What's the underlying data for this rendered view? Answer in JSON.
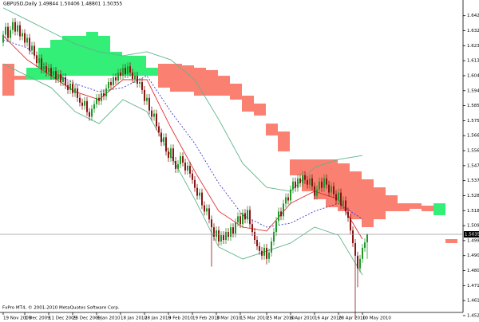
{
  "chart_data": {
    "type": "candlestick",
    "title": "GBPUSD,Daily 1.49844 1.50406 1.48801 1.50355",
    "footer": "FxPro MT4, © 2001-2010 MetaQuotes Software Corp.",
    "up_color": "#1f9a2a",
    "down_color": "#8b1414",
    "open": [
      1.625,
      1.63,
      1.635,
      1.628,
      1.633,
      1.638,
      1.632,
      1.636,
      1.629,
      1.631,
      1.625,
      1.628,
      1.62,
      1.623,
      1.617,
      1.612,
      1.615,
      1.608,
      1.61,
      1.606,
      1.609,
      1.604,
      1.607,
      1.602,
      1.605,
      1.6,
      1.603,
      1.598,
      1.595,
      1.599,
      1.593,
      1.596,
      1.59,
      1.587,
      1.585,
      1.588,
      1.581,
      1.578,
      1.583,
      1.586,
      1.59,
      1.588,
      1.593,
      1.591,
      1.596,
      1.6,
      1.598,
      1.603,
      1.601,
      1.606,
      1.604,
      1.609,
      1.605,
      1.61,
      1.606,
      1.602,
      1.604,
      1.599,
      1.6,
      1.595,
      1.588,
      1.59,
      1.582,
      1.578,
      1.58,
      1.572,
      1.568,
      1.562,
      1.565,
      1.556,
      1.552,
      1.558,
      1.55,
      1.545,
      1.548,
      1.553,
      1.549,
      1.544,
      1.547,
      1.542,
      1.538,
      1.533,
      1.528,
      1.53,
      1.522,
      1.518,
      1.52,
      1.513,
      1.508,
      1.502,
      1.506,
      1.499,
      1.503,
      1.5,
      1.505,
      1.502,
      1.508,
      1.504,
      1.511,
      1.515,
      1.51,
      1.517,
      1.513,
      1.519,
      1.51,
      1.505,
      1.5,
      1.496,
      1.493,
      1.49,
      1.495,
      1.488,
      1.492,
      1.499,
      1.505,
      1.512,
      1.518,
      1.515,
      1.523,
      1.527,
      1.525,
      1.532,
      1.537,
      1.533,
      1.539,
      1.536,
      1.541,
      1.538,
      1.535,
      1.539,
      1.534,
      1.528,
      1.532,
      1.537,
      1.533,
      1.539,
      1.535,
      1.53,
      1.534,
      1.529,
      1.525,
      1.53,
      1.522,
      1.525,
      1.518,
      1.514,
      1.506,
      1.498,
      1.49,
      1.482,
      1.488,
      1.495,
      1.49844
    ],
    "high": [
      1.6325,
      1.6375,
      1.6375,
      1.6355,
      1.6405,
      1.6405,
      1.6385,
      1.6385,
      1.6335,
      1.6335,
      1.6305,
      1.6305,
      1.6255,
      1.6255,
      1.6195,
      1.6175,
      1.6175,
      1.6125,
      1.6125,
      1.6115,
      1.6115,
      1.6095,
      1.6095,
      1.6075,
      1.6075,
      1.6055,
      1.6055,
      1.6005,
      1.6015,
      1.6015,
      1.5985,
      1.5985,
      1.5925,
      1.5895,
      1.5905,
      1.5905,
      1.5835,
      1.5855,
      1.5885,
      1.5925,
      1.5925,
      1.5955,
      1.5955,
      1.5985,
      1.6025,
      1.6025,
      1.6055,
      1.6055,
      1.6085,
      1.6085,
      1.6115,
      1.6115,
      1.6125,
      1.6125,
      1.6085,
      1.6065,
      1.6065,
      1.6025,
      1.6025,
      1.5975,
      1.5925,
      1.5925,
      1.5845,
      1.5825,
      1.5825,
      1.5745,
      1.5705,
      1.5675,
      1.5675,
      1.5585,
      1.5605,
      1.5605,
      1.5525,
      1.5505,
      1.5555,
      1.5555,
      1.5515,
      1.5495,
      1.5495,
      1.5445,
      1.5405,
      1.5355,
      1.5325,
      1.5325,
      1.5245,
      1.5225,
      1.5225,
      1.5155,
      1.5105,
      1.5085,
      1.5085,
      1.5055,
      1.5055,
      1.5075,
      1.5075,
      1.5105,
      1.5105,
      1.5135,
      1.5175,
      1.5175,
      1.5195,
      1.5195,
      1.5215,
      1.5215,
      1.5125,
      1.5075,
      1.5025,
      1.4985,
      1.4955,
      1.4975,
      1.4975,
      1.4945,
      1.5015,
      1.5075,
      1.5145,
      1.5205,
      1.5205,
      1.5255,
      1.5295,
      1.5295,
      1.5345,
      1.5395,
      1.5395,
      1.5415,
      1.5415,
      1.5435,
      1.5435,
      1.5405,
      1.5415,
      1.5415,
      1.5365,
      1.5345,
      1.5395,
      1.5395,
      1.5415,
      1.5415,
      1.5375,
      1.5365,
      1.5365,
      1.5315,
      1.5325,
      1.5325,
      1.5275,
      1.5275,
      1.5205,
      1.5165,
      1.5085,
      1.5005,
      1.4925,
      1.4905,
      1.4975,
      1.5009,
      1.50406
    ],
    "low": [
      1.6225,
      1.6275,
      1.6255,
      1.6255,
      1.6305,
      1.6295,
      1.6295,
      1.6265,
      1.6265,
      1.6225,
      1.6225,
      1.6175,
      1.6175,
      1.6145,
      1.6095,
      1.6095,
      1.6055,
      1.6055,
      1.6035,
      1.6035,
      1.6015,
      1.6015,
      1.5995,
      1.5995,
      1.5975,
      1.5975,
      1.5955,
      1.5925,
      1.5925,
      1.5905,
      1.5905,
      1.5875,
      1.5845,
      1.5825,
      1.5825,
      1.5785,
      1.5755,
      1.5755,
      1.5805,
      1.5835,
      1.5855,
      1.5855,
      1.5885,
      1.5885,
      1.5935,
      1.5955,
      1.5955,
      1.5985,
      1.5985,
      1.6015,
      1.6015,
      1.6025,
      1.6025,
      1.6035,
      1.5995,
      1.5995,
      1.5965,
      1.5965,
      1.5925,
      1.5855,
      1.5855,
      1.5795,
      1.5755,
      1.5755,
      1.5695,
      1.5655,
      1.5595,
      1.5595,
      1.5535,
      1.5495,
      1.5495,
      1.5475,
      1.5425,
      1.5425,
      1.5455,
      1.5465,
      1.5415,
      1.5415,
      1.5395,
      1.5355,
      1.5305,
      1.5255,
      1.5255,
      1.5195,
      1.5155,
      1.5155,
      1.5105,
      1.483,
      1.4995,
      1.4995,
      1.4965,
      1.4965,
      1.4975,
      1.4975,
      1.4995,
      1.4995,
      1.5015,
      1.5015,
      1.5085,
      1.5075,
      1.5075,
      1.5105,
      1.5105,
      1.5075,
      1.5025,
      1.4975,
      1.4935,
      1.4905,
      1.4875,
      1.4875,
      1.4845,
      1.4855,
      1.4895,
      1.4965,
      1.5025,
      1.5095,
      1.5125,
      1.5125,
      1.5205,
      1.5225,
      1.5225,
      1.5295,
      1.5305,
      1.5305,
      1.5335,
      1.5335,
      1.5355,
      1.5325,
      1.5325,
      1.5315,
      1.5255,
      1.5255,
      1.5295,
      1.5305,
      1.5305,
      1.5325,
      1.5275,
      1.5275,
      1.5265,
      1.5225,
      1.5225,
      1.5195,
      1.5195,
      1.5155,
      1.5115,
      1.5035,
      1.4955,
      1.45,
      1.47,
      1.4795,
      1.4855,
      1.4925,
      1.48801
    ],
    "close": [
      1.63,
      1.635,
      1.628,
      1.633,
      1.638,
      1.632,
      1.636,
      1.629,
      1.631,
      1.625,
      1.628,
      1.62,
      1.623,
      1.617,
      1.612,
      1.615,
      1.608,
      1.61,
      1.606,
      1.609,
      1.604,
      1.607,
      1.602,
      1.605,
      1.6,
      1.603,
      1.598,
      1.595,
      1.599,
      1.593,
      1.596,
      1.59,
      1.587,
      1.585,
      1.588,
      1.581,
      1.578,
      1.583,
      1.586,
      1.59,
      1.588,
      1.593,
      1.591,
      1.596,
      1.6,
      1.598,
      1.603,
      1.601,
      1.606,
      1.604,
      1.609,
      1.605,
      1.61,
      1.606,
      1.602,
      1.604,
      1.599,
      1.6,
      1.595,
      1.588,
      1.59,
      1.582,
      1.578,
      1.58,
      1.572,
      1.568,
      1.562,
      1.565,
      1.556,
      1.552,
      1.558,
      1.55,
      1.545,
      1.548,
      1.553,
      1.549,
      1.544,
      1.547,
      1.542,
      1.538,
      1.533,
      1.528,
      1.53,
      1.522,
      1.518,
      1.52,
      1.513,
      1.508,
      1.502,
      1.506,
      1.499,
      1.503,
      1.5,
      1.505,
      1.502,
      1.508,
      1.504,
      1.511,
      1.515,
      1.51,
      1.517,
      1.513,
      1.519,
      1.51,
      1.505,
      1.5,
      1.496,
      1.493,
      1.49,
      1.495,
      1.488,
      1.492,
      1.499,
      1.505,
      1.512,
      1.518,
      1.515,
      1.523,
      1.527,
      1.525,
      1.532,
      1.537,
      1.533,
      1.539,
      1.536,
      1.541,
      1.538,
      1.535,
      1.539,
      1.534,
      1.528,
      1.532,
      1.537,
      1.533,
      1.539,
      1.535,
      1.53,
      1.534,
      1.529,
      1.525,
      1.53,
      1.522,
      1.525,
      1.518,
      1.514,
      1.506,
      1.498,
      1.49,
      1.482,
      1.488,
      1.495,
      1.4984,
      1.50355
    ],
    "ylim": [
      1.448,
      1.652
    ],
    "yticks": [
      1.45205,
      1.46155,
      1.47105,
      1.48055,
      1.49005,
      1.49955,
      1.50905,
      1.51855,
      1.52805,
      1.53755,
      1.54705,
      1.55655,
      1.56605,
      1.57555,
      1.58505,
      1.59455,
      1.60405,
      1.61355,
      1.62305,
      1.63255,
      1.64205
    ],
    "current_price": 1.50355,
    "date_ticks": {
      "bars": [
        0,
        9,
        19,
        29,
        39,
        49,
        59,
        69,
        79,
        89,
        99,
        110,
        120,
        130,
        140,
        150
      ],
      "labels": [
        "19 Nov 2009",
        "1 Dec 2009",
        "11 Dec 2009",
        "23 Dec 2009",
        "6 Jan 2010",
        "18 Jan 2010",
        "28 Jan 2010",
        "9 Feb 2010",
        "19 Feb 2010",
        "3 Mar 2010",
        "15 Mar 2010",
        "25 Mar 2010",
        "6 Apr 2010",
        "16 Apr 2010",
        "28 Apr 2010",
        "10 May 2010"
      ]
    },
    "cloud": {
      "bull_color": "#33ee77",
      "bear_color": "#fa8072",
      "x": [
        0,
        5,
        10,
        15,
        20,
        25,
        30,
        35,
        40,
        45,
        50,
        55,
        60,
        65,
        70,
        75,
        80,
        85,
        90,
        95,
        100,
        105,
        110,
        115,
        120,
        125,
        130,
        135,
        140,
        145,
        150,
        155,
        160,
        165,
        170,
        175,
        180,
        185
      ],
      "senkou_a": [
        1.5914,
        1.6015,
        1.6091,
        1.6217,
        1.6268,
        1.6293,
        1.6293,
        1.6318,
        1.6293,
        1.6192,
        1.6167,
        1.6167,
        1.6091,
        1.5965,
        1.5939,
        1.5939,
        1.5914,
        1.5914,
        1.5914,
        1.5889,
        1.5813,
        1.5788,
        1.5662,
        1.5561,
        1.5409,
        1.5308,
        1.5258,
        1.5207,
        1.5182,
        1.5131,
        1.5081,
        1.5131,
        1.5182,
        1.5182,
        1.5197,
        1.5182,
        1.5232,
        1.498
      ],
      "senkou_b": [
        1.6116,
        1.604,
        1.6015,
        1.6015,
        1.6015,
        1.604,
        1.604,
        1.604,
        1.604,
        1.604,
        1.604,
        1.604,
        1.604,
        1.6116,
        1.6116,
        1.6106,
        1.6091,
        1.6076,
        1.604,
        1.599,
        1.5914,
        1.5864,
        1.5737,
        1.5687,
        1.551,
        1.551,
        1.551,
        1.551,
        1.5485,
        1.5434,
        1.5384,
        1.5333,
        1.5283,
        1.5232,
        1.5232,
        1.5217,
        1.5157,
        1.5005
      ]
    },
    "lines": [
      {
        "color": "#5fb58a",
        "dashed": false,
        "x": [
          0,
          10,
          20,
          30,
          40,
          50,
          60,
          70,
          80,
          90,
          100,
          110,
          120,
          130,
          140,
          150
        ],
        "values": [
          1.647,
          1.6394,
          1.6318,
          1.6242,
          1.6192,
          1.6167,
          1.6192,
          1.6141,
          1.6015,
          1.5763,
          1.5485,
          1.5333,
          1.5308,
          1.546,
          1.551,
          1.5535
        ]
      },
      {
        "color": "#5fb58a",
        "dashed": false,
        "x": [
          0,
          10,
          20,
          30,
          40,
          50,
          60,
          70,
          80,
          90,
          100,
          110,
          120,
          130,
          140,
          150
        ],
        "values": [
          1.6116,
          1.604,
          1.5965,
          1.5813,
          1.5737,
          1.5889,
          1.5813,
          1.5535,
          1.5258,
          1.4955,
          1.4879,
          1.4929,
          1.498,
          1.5081,
          1.503,
          1.4778
        ]
      },
      {
        "color": "#e03030",
        "dashed": false,
        "x": [
          0,
          10,
          20,
          30,
          40,
          50,
          60,
          70,
          80,
          90,
          100,
          110,
          120,
          130,
          140,
          150
        ],
        "values": [
          1.6293,
          1.6141,
          1.604,
          1.5939,
          1.5889,
          1.6015,
          1.6015,
          1.5712,
          1.5434,
          1.5182,
          1.5081,
          1.5056,
          1.5232,
          1.5308,
          1.5258,
          1.5005
        ]
      },
      {
        "color": "#3a3acc",
        "dashed": true,
        "x": [
          0,
          10,
          20,
          30,
          40,
          50,
          60,
          70,
          80,
          90,
          100,
          110,
          120,
          130,
          140,
          150
        ],
        "values": [
          1.6268,
          1.6217,
          1.6066,
          1.599,
          1.5939,
          1.5965,
          1.604,
          1.5813,
          1.5611,
          1.5359,
          1.5157,
          1.5081,
          1.5106,
          1.5182,
          1.5232,
          1.5131
        ]
      }
    ]
  }
}
